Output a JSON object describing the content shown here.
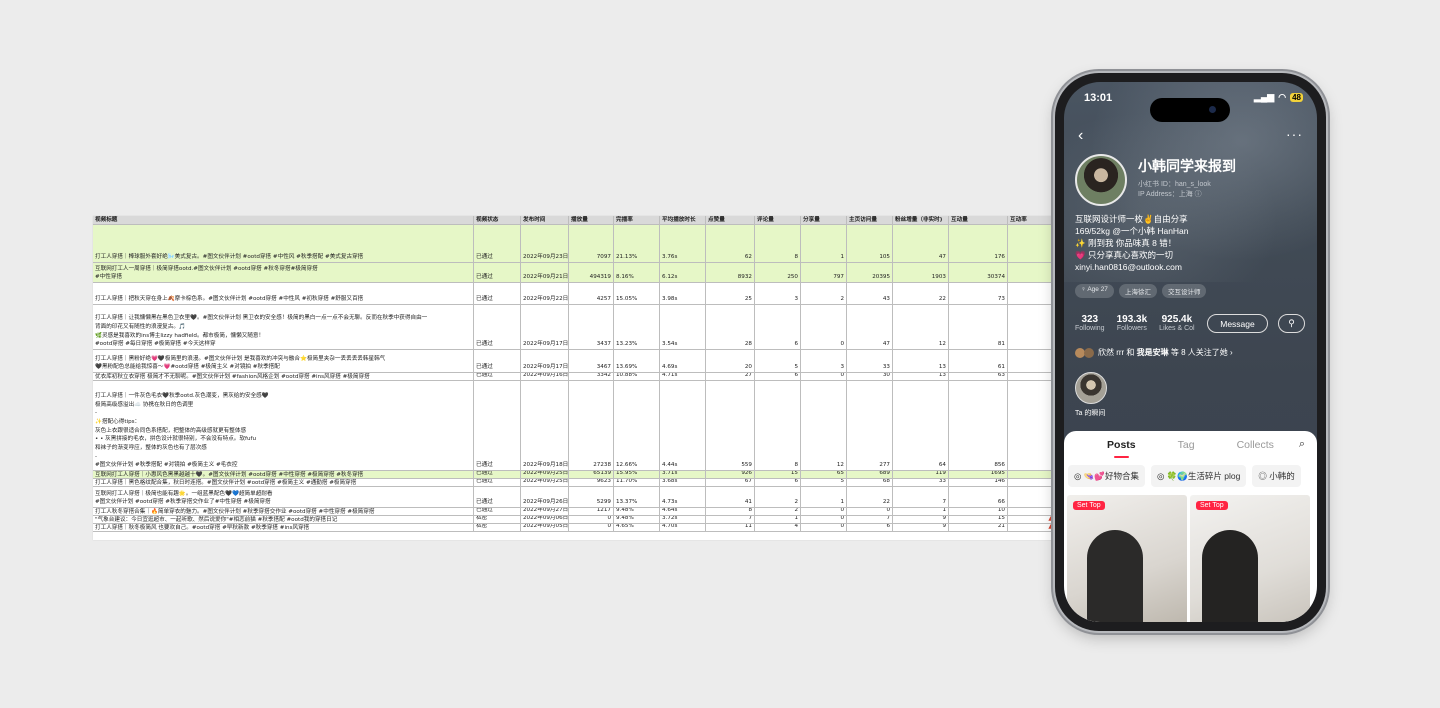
{
  "sheet": {
    "headers": [
      "视频标题",
      "视频状态",
      "发布时间",
      "播放量",
      "完播率",
      "平均播放时长",
      "点赞量",
      "评论量",
      "分享量",
      "主页访问量",
      "粉丝增量（非实时)",
      "互动量",
      "互动率"
    ],
    "rows": [
      {
        "h": 38,
        "green": true,
        "title": [
          "打工人穿搭｜棒球服外套好绝🌬️美式复古。#图文伙伴计划 #ootd穿搭 #中性风 #秋季搭配 #美式复古穿搭"
        ],
        "status": "已通过",
        "date": "2022年09月23日",
        "play": "7097",
        "rate": "21.13%",
        "avg": "3.76s",
        "like": "62",
        "cmt": "8",
        "share": "1",
        "visit": "105",
        "fans": "47",
        "inter": "176",
        "ir": ""
      },
      {
        "h": 20,
        "green": true,
        "title": [
          "互联网打工人一周穿搭｜极简穿搭ootd.#图文伙伴计划 #ootd穿搭 #秋冬穿搭#极简穿搭",
          "#中性穿搭"
        ],
        "status": "已通过",
        "date": "2022年09月21日",
        "play": "494319",
        "rate": "8.16%",
        "avg": "6.12s",
        "like": "8932",
        "cmt": "250",
        "share": "797",
        "visit": "20395",
        "fans": "1903",
        "inter": "30374",
        "ir": ""
      },
      {
        "h": 22,
        "green": false,
        "title": [
          "打工人穿搭｜把秋天穿在身上🍂摩卡棕色系。#图文伙伴计划 #ootd穿搭 #中性风 #初秋穿搭 #舒服又百搭"
        ],
        "status": "已通过",
        "date": "2022年09月22日",
        "play": "4257",
        "rate": "15.05%",
        "avg": "3.98s",
        "like": "25",
        "cmt": "3",
        "share": "2",
        "visit": "43",
        "fans": "22",
        "inter": "73",
        "ir": ""
      },
      {
        "h": 45,
        "green": false,
        "title": [
          "打工人穿搭｜让我慵懒黑在黑色卫衣里🖤。#图文伙伴计划 黑卫衣的安全感！极简的黑白一点一点不会无聊。反而在秋季中获得自由一",
          "背面的印花又有随性的浪漫复古。🎵",
          "🌿灵感是我喜欢的ins博主lizzy hadfield。都市极简，慵懒又随意！",
          "#ootd穿搭 #每日穿搭 #极简穿搭 #今天这样穿"
        ],
        "status": "已通过",
        "date": "2022年09月17日",
        "play": "3437",
        "rate": "13.23%",
        "avg": "3.54s",
        "like": "28",
        "cmt": "6",
        "share": "0",
        "visit": "47",
        "fans": "12",
        "inter": "81",
        "ir": ""
      },
      {
        "h": 23,
        "green": false,
        "title": [
          "打工人穿搭｜黑粉好绝💗🖤极简里的浪漫。#图文伙伴计划 是我喜欢的冲突与融合⭐极简里夹杂一丢丢丢丢韩星韩气",
          "🖤黑粉配色总能给我惊喜～💗#ootd穿搭 #极简主义 #对镜拍 #秋季搭配"
        ],
        "status": "已通过",
        "date": "2022年09月17日",
        "play": "3467",
        "rate": "13.69%",
        "avg": "4.69s",
        "like": "20",
        "cmt": "5",
        "share": "3",
        "visit": "33",
        "fans": "13",
        "inter": "61",
        "ir": ""
      },
      {
        "h": 8,
        "green": false,
        "title": [
          "优衣库初秋立衣穿搭 极简才不无聊呢。#图文伙伴计划 #fashion风格企划 #ootd穿搭 #ins风穿搭 #极简穿搭"
        ],
        "status": "已通过",
        "date": "2022年09月16日",
        "play": "3342",
        "rate": "10.88%",
        "avg": "4.71s",
        "like": "27",
        "cmt": "6",
        "share": "0",
        "visit": "30",
        "fans": "13",
        "inter": "63",
        "ir": ""
      },
      {
        "h": 90,
        "green": false,
        "title": [
          "打工人穿搭｜一件灰色毛衣🖤秋季ootd.灰色潮变，黑灰给的安全感🖤",
          "极简高级感溢出☁️ 协携在秋日的色调里",
          "-",
          "✨搭配心得tips：",
          "灰色上衣跟很适合同色系搭配，把整体的高级感就更有整体感",
          "• • 灰黑拼接的毛衣，拼色设计就很特别，不会没有特点。软fufu",
          "和袜子的渐变呼应，整体的灰色也有了层次感",
          "-",
          "#图文伙伴计划 #秋季搭配 #对镜拍 #极简主义 #毛衣控"
        ],
        "status": "已通过",
        "date": "2022年09月18日",
        "play": "27238",
        "rate": "12.66%",
        "avg": "4.44s",
        "like": "559",
        "cmt": "8",
        "share": "12",
        "visit": "277",
        "fans": "64",
        "inter": "856",
        "ir": ""
      },
      {
        "h": 8,
        "green": true,
        "title": [
          "互联网打工人穿搭｜小惠风色黑黑越越十🖤。#图文伙伴计划 #ootd穿搭 #中性穿搭 #极简穿搭 #秋冬穿搭"
        ],
        "status": "已通过",
        "date": "2022年09月25日",
        "play": "65139",
        "rate": "15.95%",
        "avg": "3.71s",
        "like": "926",
        "cmt": "15",
        "share": "65",
        "visit": "689",
        "fans": "119",
        "inter": "1695",
        "ir": ""
      },
      {
        "h": 8,
        "green": false,
        "title": [
          "打工人穿搭｜黑色格纹配合集，秋日时连搭。#图文伙伴计划 #ootd穿搭 #极简主义 #通勤搭 #极简穿搭"
        ],
        "status": "已通过",
        "date": "2022年09月25日",
        "play": "9623",
        "rate": "11.70%",
        "avg": "3.68s",
        "like": "67",
        "cmt": "6",
        "share": "5",
        "visit": "68",
        "fans": "33",
        "inter": "146",
        "ir": ""
      },
      {
        "h": 21,
        "green": false,
        "title": [
          "互联网打工人穿搭｜极简也能有趣🌟。一组蓝黑配色🖤💙超简单超耐看",
          "#图文伙伴计划 #ootd穿搭 #秋季穿搭交作业了#中性穿搭 #极简穿搭"
        ],
        "status": "已通过",
        "date": "2022年09月26日",
        "play": "5299",
        "rate": "13.37%",
        "avg": "4.73s",
        "like": "41",
        "cmt": "2",
        "share": "1",
        "visit": "22",
        "fans": "7",
        "inter": "66",
        "ir": ""
      },
      {
        "h": 8,
        "green": false,
        "title": [
          "打工人秋冬穿搭合集｜🔥简单穿衣的魅力。#图文伙伴计划 #秋季穿搭交作业 #ootd穿搭 #中性穿搭 #极简穿搭"
        ],
        "status": "已通过",
        "date": "2022年09月27日",
        "play": "1217",
        "rate": "9.48%",
        "avg": "4.64s",
        "like": "8",
        "cmt": "2",
        "share": "0",
        "visit": "0",
        "fans": "1",
        "inter": "10",
        "ir": ""
      },
      {
        "h": 8,
        "green": false,
        "title": [
          "\"气象台建议：今日宜逛超市、一起听歌、然后说爱你\"#相恋前猫 #秋季搭配 #ootd我的穿搭日记"
        ],
        "status": "私密",
        "date": "2022年09月06日",
        "play": "0",
        "rate": "9.48%",
        "avg": "3.72s",
        "like": "7",
        "cmt": "1",
        "share": "0",
        "visit": "7",
        "fans": "9",
        "inter": "15",
        "ir": "▲"
      },
      {
        "h": 8,
        "green": false,
        "title": [
          "打工人穿搭｜秋冬极简风 也要欢自己。#ootd穿搭 #早秋新款 #秋季穿搭 #ins风穿搭"
        ],
        "status": "私密",
        "date": "2022年09月05日",
        "play": "0",
        "rate": "4.65%",
        "avg": "4.70s",
        "like": "11",
        "cmt": "4",
        "share": "0",
        "visit": "6",
        "fans": "9",
        "inter": "21",
        "ir": "▲"
      }
    ]
  },
  "phone": {
    "time": "13:01",
    "battery": "48",
    "name": "小韩同学来报到",
    "id": "小红书 ID：han_s_look",
    "ip": "IP Address：上海 ⓘ",
    "bio": [
      "互联网设计师一枚✌️自由分享",
      "169/52kg @一个小韩 HanHan",
      "✨ 刚到我 你品味真 8 错！",
      "💗 只分享真心喜欢的一切",
      "xinyi.han0816@outlook.com"
    ],
    "tags": [
      "♀ Age 27",
      "上海徐汇",
      "交互设计师"
    ],
    "stats": [
      {
        "v": "323",
        "k": "Following"
      },
      {
        "v": "193.3k",
        "k": "Followers"
      },
      {
        "v": "925.4k",
        "k": "Likes & Col"
      }
    ],
    "message": "Message",
    "mutual_pre": "欣然 rrr 和 ",
    "mutual_bold": "我是安琳",
    "mutual_post": " 等 8 人关注了她 ›",
    "moment_label": "Ta 的瞬间",
    "tabs": [
      "Posts",
      "Tag",
      "Collects"
    ],
    "collections": [
      "👒💕好物合集",
      "🍀🌍生活碎片 plog",
      "小韩的"
    ],
    "set_top": "Set Top"
  }
}
